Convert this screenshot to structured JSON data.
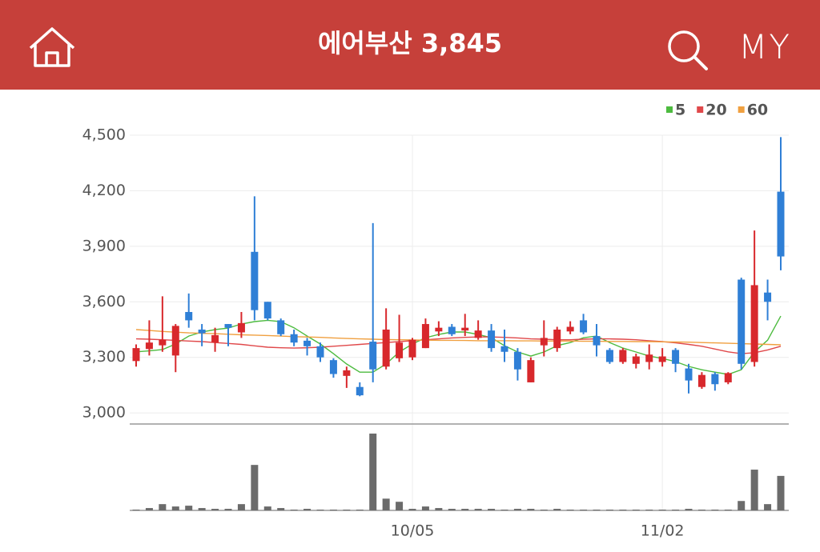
{
  "header": {
    "title": "에어부산 3,845",
    "right_label": "MY"
  },
  "chart_data": {
    "type": "candlestick",
    "categories": [
      null,
      null,
      null,
      null,
      null,
      null,
      null,
      null,
      null,
      null,
      null,
      null,
      null,
      null,
      null,
      null,
      null,
      null,
      null,
      null,
      null,
      "10/05",
      null,
      null,
      null,
      null,
      null,
      null,
      null,
      null,
      null,
      null,
      null,
      null,
      null,
      null,
      null,
      null,
      null,
      null,
      "11/02",
      null,
      null,
      null,
      null,
      null,
      null,
      null,
      null,
      null
    ],
    "open": [
      3280,
      3345,
      3365,
      3310,
      3545,
      3450,
      3380,
      3480,
      3435,
      3870,
      3600,
      3500,
      3425,
      3390,
      3360,
      3285,
      3200,
      3140,
      3385,
      3250,
      3295,
      3300,
      3350,
      3440,
      3465,
      3445,
      3405,
      3445,
      3360,
      3330,
      3165,
      3365,
      3350,
      3440,
      3500,
      3415,
      3340,
      3275,
      3265,
      3275,
      3275,
      3340,
      3240,
      3140,
      3210,
      3165,
      3720,
      3275,
      3650,
      4195
    ],
    "high": [
      3370,
      3500,
      3630,
      3480,
      3645,
      3480,
      3460,
      3480,
      3545,
      4170,
      3600,
      3510,
      3450,
      3405,
      3380,
      3295,
      3250,
      3165,
      4025,
      3565,
      3530,
      3405,
      3510,
      3495,
      3480,
      3535,
      3500,
      3480,
      3450,
      3350,
      3300,
      3500,
      3465,
      3495,
      3535,
      3480,
      3350,
      3350,
      3320,
      3370,
      3350,
      3350,
      3265,
      3220,
      3220,
      3220,
      3730,
      3985,
      3720,
      4490
    ],
    "low": [
      3250,
      3310,
      3330,
      3220,
      3460,
      3360,
      3330,
      3360,
      3405,
      3500,
      3500,
      3415,
      3360,
      3310,
      3275,
      3190,
      3135,
      3090,
      3165,
      3235,
      3275,
      3285,
      3350,
      3415,
      3415,
      3415,
      3395,
      3330,
      3275,
      3175,
      3165,
      3305,
      3330,
      3425,
      3425,
      3305,
      3265,
      3265,
      3240,
      3235,
      3250,
      3220,
      3105,
      3130,
      3120,
      3155,
      3235,
      3250,
      3500,
      3770
    ],
    "close": [
      3350,
      3380,
      3395,
      3470,
      3500,
      3430,
      3420,
      3460,
      3485,
      3555,
      3510,
      3425,
      3380,
      3360,
      3300,
      3210,
      3230,
      3095,
      3235,
      3450,
      3380,
      3395,
      3480,
      3460,
      3425,
      3460,
      3445,
      3350,
      3330,
      3235,
      3285,
      3405,
      3450,
      3465,
      3435,
      3365,
      3275,
      3340,
      3305,
      3315,
      3305,
      3265,
      3175,
      3205,
      3155,
      3215,
      3265,
      3690,
      3600,
      3845
    ],
    "up_color": "#d8282c",
    "down_color": "#2f7fd6",
    "series": [
      {
        "name": "5",
        "color": "#4dbb3f",
        "values": [
          3330,
          3335,
          3342,
          3372,
          3415,
          3437,
          3450,
          3458,
          3480,
          3493,
          3500,
          3493,
          3460,
          3415,
          3372,
          3320,
          3264,
          3220,
          3220,
          3264,
          3329,
          3372,
          3406,
          3424,
          3437,
          3437,
          3424,
          3406,
          3363,
          3329,
          3307,
          3329,
          3363,
          3380,
          3406,
          3415,
          3380,
          3350,
          3329,
          3307,
          3294,
          3277,
          3251,
          3233,
          3220,
          3208,
          3233,
          3329,
          3393,
          3523
        ]
      },
      {
        "name": "20",
        "color": "#e0484a",
        "values": [
          3400,
          3398,
          3395,
          3392,
          3388,
          3385,
          3380,
          3375,
          3370,
          3362,
          3355,
          3352,
          3350,
          3352,
          3355,
          3360,
          3365,
          3370,
          3375,
          3380,
          3385,
          3390,
          3395,
          3400,
          3405,
          3408,
          3410,
          3410,
          3408,
          3405,
          3400,
          3398,
          3395,
          3395,
          3398,
          3400,
          3400,
          3398,
          3395,
          3390,
          3385,
          3378,
          3370,
          3360,
          3345,
          3330,
          3320,
          3325,
          3340,
          3360
        ]
      },
      {
        "name": "60",
        "color": "#f0a040",
        "values": [
          3450,
          3445,
          3440,
          3436,
          3432,
          3430,
          3428,
          3425,
          3422,
          3420,
          3418,
          3415,
          3412,
          3410,
          3408,
          3405,
          3402,
          3400,
          3398,
          3396,
          3395,
          3394,
          3393,
          3392,
          3392,
          3391,
          3390,
          3390,
          3390,
          3389,
          3389,
          3388,
          3388,
          3388,
          3387,
          3387,
          3386,
          3386,
          3385,
          3385,
          3384,
          3383,
          3382,
          3380,
          3378,
          3376,
          3374,
          3372,
          3370,
          3368
        ]
      }
    ],
    "volume": [
      1,
      3,
      8,
      5,
      6,
      3,
      2,
      2,
      8,
      58,
      5,
      3,
      1,
      2,
      1,
      1,
      1,
      1,
      98,
      15,
      11,
      2,
      5,
      3,
      2,
      2,
      2,
      2,
      1,
      2,
      2,
      1,
      2,
      1,
      1,
      1,
      1,
      1,
      1,
      1,
      1,
      1,
      2,
      1,
      1,
      1,
      12,
      52,
      8,
      44
    ],
    "volume_color": "#6b6b6b",
    "vlim": [
      0,
      100
    ],
    "ylim": [
      2940,
      4500
    ],
    "yticks": [
      {
        "value": 3000,
        "label": "3,000"
      },
      {
        "value": 3300,
        "label": "3,300"
      },
      {
        "value": 3600,
        "label": "3,600"
      },
      {
        "value": 3900,
        "label": "3,900"
      },
      {
        "value": 4200,
        "label": "4,200"
      },
      {
        "value": 4500,
        "label": "4,500"
      }
    ],
    "grid": true,
    "legend": "top-right"
  }
}
